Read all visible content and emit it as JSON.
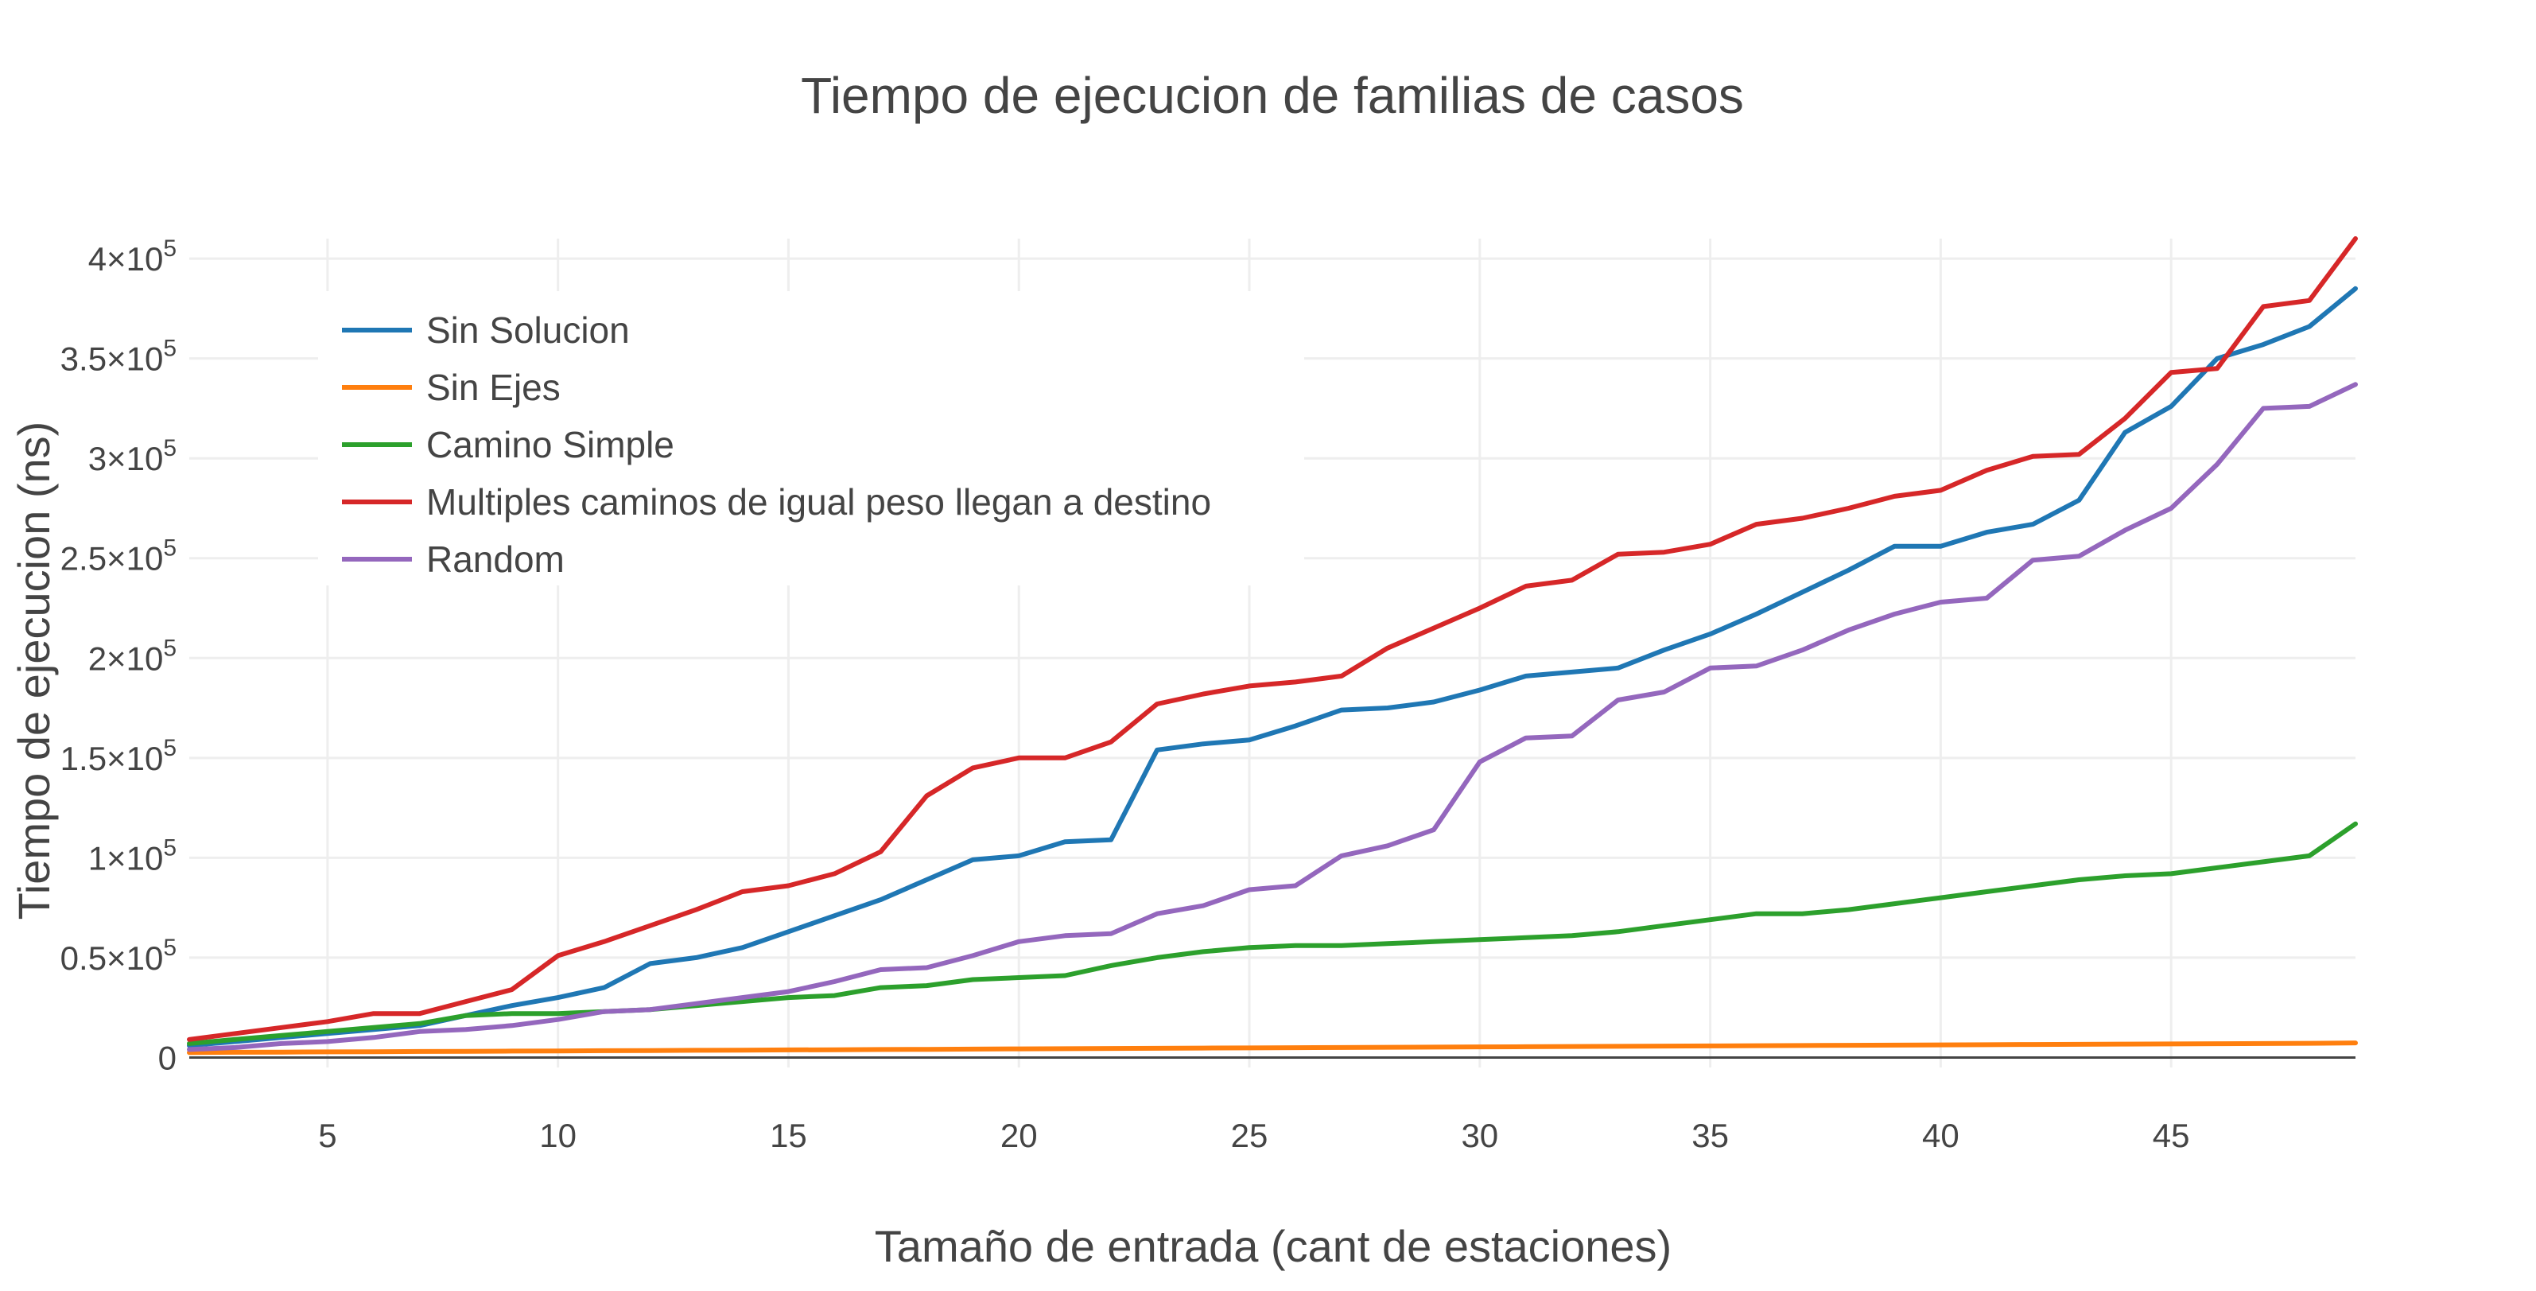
{
  "chart_data": {
    "type": "line",
    "title": "Tiempo de ejecucion de familias de casos",
    "xlabel": "Tamaño de entrada (cant de estaciones)",
    "ylabel": "Tiempo de ejecucion (ns)",
    "xlim": [
      2,
      49
    ],
    "ylim": [
      -5000,
      410000
    ],
    "x_ticks": [
      5,
      10,
      15,
      20,
      25,
      30,
      35,
      40,
      45
    ],
    "x_tick_labels": [
      "5",
      "10",
      "15",
      "20",
      "25",
      "30",
      "35",
      "40",
      "45"
    ],
    "y_ticks": [
      0,
      50000,
      100000,
      150000,
      200000,
      250000,
      300000,
      350000,
      400000
    ],
    "y_tick_mantissas": [
      "0",
      "0.5×10",
      "1×10",
      "1.5×10",
      "2×10",
      "2.5×10",
      "3×10",
      "3.5×10",
      "4×10"
    ],
    "y_tick_exponents": [
      "",
      "5",
      "5",
      "5",
      "5",
      "5",
      "5",
      "5",
      "5"
    ],
    "grid": true,
    "legend_position": "top-left",
    "x": [
      2,
      3,
      4,
      5,
      6,
      7,
      8,
      9,
      10,
      11,
      12,
      13,
      14,
      15,
      16,
      17,
      18,
      19,
      20,
      21,
      22,
      23,
      24,
      25,
      26,
      27,
      28,
      29,
      30,
      31,
      32,
      33,
      34,
      35,
      36,
      37,
      38,
      39,
      40,
      41,
      42,
      43,
      44,
      45,
      46,
      47,
      48,
      49
    ],
    "series": [
      {
        "name": "Sin Solucion",
        "color": "#1f77b4",
        "values": [
          6000,
          8000,
          10000,
          12000,
          14000,
          16000,
          21000,
          26000,
          30000,
          35000,
          47000,
          50000,
          55000,
          63000,
          71000,
          79000,
          89000,
          99000,
          101000,
          108000,
          109000,
          154000,
          157000,
          159000,
          166000,
          174000,
          175000,
          178000,
          184000,
          191000,
          193000,
          195000,
          204000,
          212000,
          222000,
          233000,
          244000,
          256000,
          256000,
          263000,
          267000,
          279000,
          313000,
          326000,
          350000,
          357000,
          366000,
          385000
        ]
      },
      {
        "name": "Sin Ejes",
        "color": "#ff7f0e",
        "values": [
          2500,
          2600,
          2700,
          2800,
          2900,
          3000,
          3100,
          3200,
          3300,
          3400,
          3500,
          3600,
          3700,
          3800,
          3900,
          4000,
          4100,
          4200,
          4300,
          4400,
          4500,
          4600,
          4700,
          4800,
          4900,
          5000,
          5100,
          5200,
          5300,
          5400,
          5500,
          5600,
          5700,
          5800,
          5900,
          6000,
          6100,
          6200,
          6300,
          6400,
          6500,
          6600,
          6700,
          6800,
          6900,
          7000,
          7100,
          7300
        ]
      },
      {
        "name": "Camino Simple",
        "color": "#2ca02c",
        "values": [
          7000,
          9000,
          11000,
          13000,
          15000,
          17000,
          21000,
          22000,
          22000,
          23000,
          24000,
          26000,
          28000,
          30000,
          31000,
          35000,
          36000,
          39000,
          40000,
          41000,
          46000,
          50000,
          53000,
          55000,
          56000,
          56000,
          57000,
          58000,
          59000,
          60000,
          61000,
          63000,
          66000,
          69000,
          72000,
          72000,
          74000,
          77000,
          80000,
          83000,
          86000,
          89000,
          91000,
          92000,
          95000,
          98000,
          101000,
          117000
        ]
      },
      {
        "name": "Multiples caminos de igual peso llegan a destino",
        "color": "#d62728",
        "values": [
          9000,
          12000,
          15000,
          18000,
          22000,
          22000,
          28000,
          34000,
          51000,
          58000,
          66000,
          74000,
          83000,
          86000,
          92000,
          103000,
          131000,
          145000,
          150000,
          150000,
          158000,
          177000,
          182000,
          186000,
          188000,
          191000,
          205000,
          215000,
          225000,
          236000,
          239000,
          252000,
          253000,
          257000,
          267000,
          270000,
          275000,
          281000,
          284000,
          294000,
          301000,
          302000,
          320000,
          343000,
          345000,
          376000,
          379000,
          410000
        ]
      },
      {
        "name": "Random",
        "color": "#9467bd",
        "values": [
          4000,
          5000,
          7000,
          8000,
          10000,
          13000,
          14000,
          16000,
          19000,
          23000,
          24000,
          27000,
          30000,
          33000,
          38000,
          44000,
          45000,
          51000,
          58000,
          61000,
          62000,
          72000,
          76000,
          84000,
          86000,
          101000,
          106000,
          114000,
          148000,
          160000,
          161000,
          179000,
          183000,
          195000,
          196000,
          204000,
          214000,
          222000,
          228000,
          230000,
          249000,
          251000,
          264000,
          275000,
          297000,
          325000,
          326000,
          337000
        ]
      }
    ]
  }
}
